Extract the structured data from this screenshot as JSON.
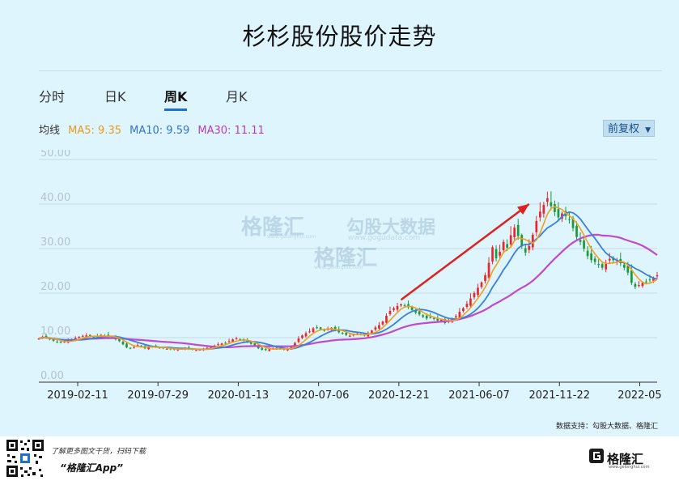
{
  "title": "杉杉股份股价走势",
  "tabs": [
    {
      "label": "分时",
      "active": false
    },
    {
      "label": "日K",
      "active": false
    },
    {
      "label": "周K",
      "active": true
    },
    {
      "label": "月K",
      "active": false
    }
  ],
  "ma": {
    "label": "均线",
    "ma5": "MA5: 9.35",
    "ma10": "MA10: 9.59",
    "ma30": "MA30: 11.11",
    "colors": {
      "ma5": "#f0a020",
      "ma10": "#3a7fe0",
      "ma30": "#c04ac8"
    }
  },
  "adjust_button": "前复权",
  "watermark": {
    "brand1": "格隆汇",
    "brand1_url": "www.gelonghui.com",
    "brand2": "勾股大数据",
    "brand2_url": "www.gogudata.com"
  },
  "source_note": "数据支持：勾股大数据、格隆汇",
  "footer": {
    "promo_line1": "了解更多图文干货，扫码下载",
    "promo_line2": "“格隆汇App”",
    "logo_text": "格隆汇",
    "logo_sub": "www.gelonghui.com"
  },
  "chart_data": {
    "type": "line",
    "title": "杉杉股份股价走势",
    "y_ticks": [
      "50.00",
      "40.00",
      "30.00",
      "20.00",
      "10.00",
      "0.00"
    ],
    "ylim": [
      0,
      50
    ],
    "grid": true,
    "x_ticks": [
      "2019-02-11",
      "2019-07-29",
      "2020-01-13",
      "2020-07-06",
      "2020-12-21",
      "2021-06-07",
      "2021-11-22",
      "2022-05"
    ],
    "colors": {
      "up": "#e8262e",
      "down": "#1a9a3a",
      "ma5": "#f0a020",
      "ma10": "#3a7fe0",
      "ma30": "#c04ac8",
      "arrow": "#e02020"
    },
    "close": [
      9.8,
      10.2,
      10.0,
      9.6,
      9.3,
      9.0,
      8.9,
      9.1,
      9.3,
      9.6,
      9.9,
      10.2,
      10.4,
      10.5,
      10.3,
      10.1,
      10.3,
      10.6,
      10.4,
      10.2,
      10.0,
      9.6,
      9.2,
      8.5,
      7.8,
      7.6,
      7.9,
      8.3,
      8.0,
      7.6,
      7.8,
      8.0,
      7.9,
      7.7,
      7.6,
      7.5,
      7.4,
      7.3,
      7.4,
      7.5,
      7.6,
      7.4,
      7.3,
      7.2,
      7.3,
      7.5,
      7.7,
      7.9,
      8.2,
      8.5,
      8.7,
      8.8,
      9.2,
      9.6,
      9.8,
      9.5,
      9.3,
      9.0,
      8.6,
      8.2,
      7.6,
      7.3,
      7.2,
      7.4,
      7.6,
      7.7,
      7.5,
      7.3,
      7.4,
      7.9,
      8.8,
      9.8,
      10.5,
      11.0,
      11.4,
      12.1,
      12.2,
      11.9,
      11.6,
      11.9,
      12.2,
      11.7,
      11.2,
      10.9,
      10.6,
      10.4,
      10.7,
      10.9,
      10.7,
      10.5,
      10.9,
      11.6,
      12.3,
      12.8,
      13.6,
      14.9,
      16.0,
      16.6,
      17.1,
      17.5,
      17.2,
      16.8,
      16.2,
      15.6,
      15.2,
      14.7,
      14.3,
      14.6,
      14.2,
      13.8,
      14.0,
      13.3,
      13.7,
      14.3,
      14.8,
      15.8,
      16.6,
      17.6,
      18.8,
      20.0,
      21.2,
      22.4,
      24.0,
      26.8,
      30.3,
      27.8,
      29.3,
      31.5,
      30.2,
      33.0,
      34.7,
      32.8,
      30.5,
      29.1,
      30.6,
      33.1,
      36.2,
      38.3,
      39.8,
      41.3,
      39.5,
      38.2,
      37.0,
      37.9,
      37.3,
      36.5,
      34.6,
      32.6,
      31.5,
      30.0,
      28.3,
      27.4,
      27.0,
      26.3,
      25.7,
      26.8,
      27.7,
      27.4,
      27.1,
      26.7,
      25.7,
      24.6,
      22.3,
      21.4,
      21.8,
      22.3,
      22.6,
      23.0,
      23.4,
      24.0
    ]
  }
}
